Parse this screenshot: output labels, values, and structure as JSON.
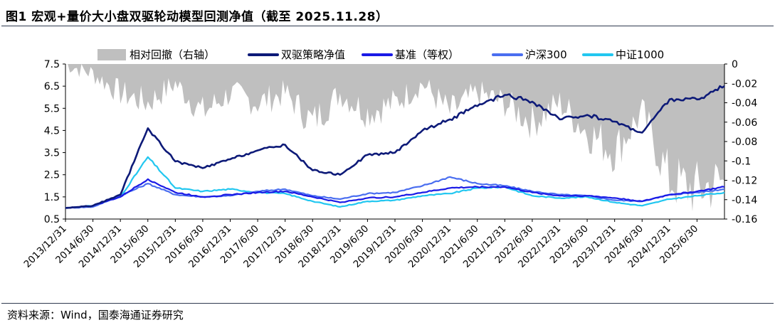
{
  "figure": {
    "title_label": "图1",
    "title_text": "宏观+量价大小盘双驱轮动模型回测净值（截至 2025.11.28）",
    "source": "资料来源：Wind，国泰海通证券研究"
  },
  "chart_data": {
    "type": "line",
    "title": "宏观+量价大小盘双驱轮动模型回测净值（截至 2025.11.28）",
    "x": [
      "2013/12/31",
      "2014/6/30",
      "2014/12/31",
      "2015/6/30",
      "2015/12/31",
      "2016/6/30",
      "2016/12/31",
      "2017/6/30",
      "2017/12/31",
      "2018/6/30",
      "2018/12/31",
      "2019/6/30",
      "2019/12/31",
      "2020/6/30",
      "2020/12/31",
      "2021/6/30",
      "2021/12/31",
      "2022/6/30",
      "2022/12/31",
      "2023/6/30",
      "2023/12/31",
      "2024/6/30",
      "2024/12/31",
      "2025/6/30",
      "2025/11/28"
    ],
    "x_tick_labels": [
      "2013/12/31",
      "2014/6/30",
      "2014/12/31",
      "2015/6/30",
      "2015/12/31",
      "2016/6/30",
      "2016/12/31",
      "2017/6/30",
      "2017/12/31",
      "2018/6/30",
      "2018/12/31",
      "2019/6/30",
      "2019/12/31",
      "2020/6/30",
      "2020/12/31",
      "2021/6/30",
      "2021/12/31",
      "2022/6/30",
      "2022/12/31",
      "2023/6/30",
      "2023/12/31",
      "2024/6/30",
      "2024/12/31",
      "2025/6/30"
    ],
    "y_left": {
      "ylim": [
        0.5,
        7.5
      ],
      "ticks": [
        "0.5",
        "1.5",
        "2.5",
        "3.5",
        "4.5",
        "5.5",
        "6.5",
        "7.5"
      ]
    },
    "y_right": {
      "ylim": [
        -0.16,
        0
      ],
      "ticks": [
        "-0.16",
        "-0.14",
        "-0.12",
        "-0.1",
        "-0.08",
        "-0.06",
        "-0.04",
        "-0.02",
        "0"
      ]
    },
    "series": [
      {
        "name": "相对回撤（右轴）",
        "kind": "area",
        "axis": "right",
        "color": "#bfbfbf",
        "values": [
          0,
          -0.01,
          -0.03,
          -0.04,
          -0.02,
          -0.05,
          -0.03,
          -0.04,
          -0.03,
          -0.06,
          -0.03,
          -0.05,
          -0.04,
          -0.02,
          -0.05,
          -0.03,
          -0.04,
          -0.06,
          -0.04,
          -0.07,
          -0.09,
          -0.05,
          -0.12,
          -0.13,
          -0.12
        ]
      },
      {
        "name": "双驱策略净值",
        "kind": "line",
        "axis": "left",
        "color": "#0d1a78",
        "values": [
          1.0,
          1.1,
          1.6,
          4.6,
          3.1,
          2.8,
          3.2,
          3.6,
          3.85,
          2.7,
          2.5,
          3.4,
          3.5,
          4.5,
          5.0,
          5.6,
          6.1,
          5.8,
          5.0,
          5.2,
          4.9,
          4.4,
          5.9,
          5.9,
          6.5
        ]
      },
      {
        "name": "基准（等权）",
        "kind": "line",
        "axis": "left",
        "color": "#1a1ae6",
        "values": [
          1.0,
          1.1,
          1.5,
          2.3,
          1.7,
          1.5,
          1.6,
          1.7,
          1.75,
          1.5,
          1.25,
          1.45,
          1.5,
          1.7,
          1.9,
          1.95,
          1.95,
          1.7,
          1.55,
          1.55,
          1.45,
          1.3,
          1.6,
          1.75,
          1.95
        ]
      },
      {
        "name": "沪深300",
        "kind": "line",
        "axis": "left",
        "color": "#4a6ef0",
        "values": [
          1.0,
          1.05,
          1.55,
          2.1,
          1.6,
          1.5,
          1.55,
          1.75,
          1.85,
          1.55,
          1.4,
          1.65,
          1.7,
          2.0,
          2.4,
          2.1,
          2.0,
          1.75,
          1.6,
          1.55,
          1.35,
          1.3,
          1.6,
          1.7,
          1.85
        ]
      },
      {
        "name": "中证1000",
        "kind": "line",
        "axis": "left",
        "color": "#22c7f0",
        "values": [
          1.0,
          1.1,
          1.5,
          3.3,
          1.9,
          1.75,
          1.85,
          1.7,
          1.65,
          1.3,
          1.05,
          1.3,
          1.35,
          1.55,
          1.65,
          1.9,
          1.95,
          1.55,
          1.45,
          1.5,
          1.25,
          1.1,
          1.4,
          1.55,
          1.7
        ]
      }
    ]
  }
}
